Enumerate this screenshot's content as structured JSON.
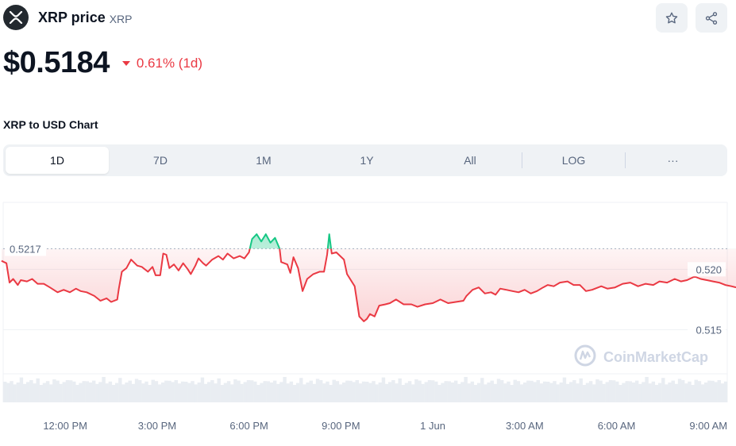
{
  "header": {
    "logo_icon": "xrp-logo-icon",
    "coin_name": "XRP price",
    "coin_symbol": "XRP",
    "watchlist_icon": "star-icon",
    "share_icon": "share-icon"
  },
  "price": {
    "value": "$0.5184",
    "change": "0.61% (1d)",
    "direction": "down",
    "change_color": "#ea3943"
  },
  "chart_section": {
    "title": "XRP to USD Chart",
    "tabs": [
      "1D",
      "7D",
      "1M",
      "1Y",
      "All",
      "LOG",
      "···"
    ],
    "active_tab": "1D"
  },
  "chart_data": {
    "type": "line",
    "reference_label": "0.5217",
    "reference_value": 0.5217,
    "y_ticks": [
      {
        "value": 0.52,
        "label": "0.520"
      },
      {
        "value": 0.515,
        "label": "0.515"
      }
    ],
    "x_ticks": [
      {
        "t": 2.0,
        "label": "12:00 PM"
      },
      {
        "t": 5.0,
        "label": "3:00 PM"
      },
      {
        "t": 8.0,
        "label": "6:00 PM"
      },
      {
        "t": 11.0,
        "label": "9:00 PM"
      },
      {
        "t": 14.0,
        "label": "1 Jun"
      },
      {
        "t": 17.0,
        "label": "3:00 AM"
      },
      {
        "t": 20.0,
        "label": "6:00 AM"
      },
      {
        "t": 23.0,
        "label": "9:00 AM"
      }
    ],
    "x_range": [
      -0.13,
      23.9
    ],
    "y_range": [
      0.5111,
      0.5254
    ],
    "up_color": "#16c784",
    "down_color": "#ea3943",
    "watermark": "CoinMarketCap",
    "series": [
      {
        "values": [
          [
            -0.08,
            0.5207
          ],
          [
            0.08,
            0.5205
          ],
          [
            0.18,
            0.5189
          ],
          [
            0.3,
            0.5192
          ],
          [
            0.45,
            0.5187
          ],
          [
            0.55,
            0.5191
          ],
          [
            0.75,
            0.519
          ],
          [
            0.92,
            0.5192
          ],
          [
            1.1,
            0.5188
          ],
          [
            1.3,
            0.5188
          ],
          [
            1.5,
            0.5185
          ],
          [
            1.75,
            0.5181
          ],
          [
            1.95,
            0.5183
          ],
          [
            2.15,
            0.5181
          ],
          [
            2.35,
            0.5184
          ],
          [
            2.5,
            0.5182
          ],
          [
            2.7,
            0.5181
          ],
          [
            2.95,
            0.5178
          ],
          [
            3.15,
            0.5174
          ],
          [
            3.35,
            0.5176
          ],
          [
            3.5,
            0.5173
          ],
          [
            3.7,
            0.5175
          ],
          [
            3.75,
            0.5184
          ],
          [
            3.85,
            0.5198
          ],
          [
            4.0,
            0.5201
          ],
          [
            4.15,
            0.5208
          ],
          [
            4.35,
            0.5203
          ],
          [
            4.5,
            0.5202
          ],
          [
            4.7,
            0.5198
          ],
          [
            4.85,
            0.5202
          ],
          [
            4.95,
            0.5195
          ],
          [
            5.1,
            0.5195
          ],
          [
            5.2,
            0.5213
          ],
          [
            5.3,
            0.5212
          ],
          [
            5.4,
            0.5201
          ],
          [
            5.55,
            0.5204
          ],
          [
            5.7,
            0.5199
          ],
          [
            5.85,
            0.5205
          ],
          [
            6.0,
            0.52
          ],
          [
            6.1,
            0.5196
          ],
          [
            6.25,
            0.5203
          ],
          [
            6.35,
            0.5209
          ],
          [
            6.5,
            0.5205
          ],
          [
            6.6,
            0.5203
          ],
          [
            6.8,
            0.5208
          ],
          [
            7.0,
            0.5211
          ],
          [
            7.15,
            0.5208
          ],
          [
            7.3,
            0.5213
          ],
          [
            7.5,
            0.5209
          ],
          [
            7.7,
            0.5211
          ],
          [
            7.85,
            0.5209
          ],
          [
            8.0,
            0.5214
          ],
          [
            8.1,
            0.5225
          ],
          [
            8.25,
            0.5229
          ],
          [
            8.4,
            0.5223
          ],
          [
            8.55,
            0.5229
          ],
          [
            8.7,
            0.5222
          ],
          [
            8.85,
            0.5226
          ],
          [
            9.0,
            0.5217
          ],
          [
            9.05,
            0.5206
          ],
          [
            9.25,
            0.5204
          ],
          [
            9.35,
            0.5197
          ],
          [
            9.45,
            0.521
          ],
          [
            9.6,
            0.5201
          ],
          [
            9.75,
            0.5182
          ],
          [
            9.9,
            0.5192
          ],
          [
            10.1,
            0.5196
          ],
          [
            10.3,
            0.5198
          ],
          [
            10.45,
            0.5198
          ],
          [
            10.55,
            0.5212
          ],
          [
            10.62,
            0.5229
          ],
          [
            10.7,
            0.5213
          ],
          [
            10.85,
            0.5214
          ],
          [
            11.1,
            0.5208
          ],
          [
            11.2,
            0.5196
          ],
          [
            11.45,
            0.5186
          ],
          [
            11.6,
            0.5161
          ],
          [
            11.75,
            0.5157
          ],
          [
            11.85,
            0.5159
          ],
          [
            11.95,
            0.5163
          ],
          [
            12.1,
            0.5161
          ],
          [
            12.25,
            0.517
          ],
          [
            12.45,
            0.5171
          ],
          [
            12.6,
            0.5172
          ],
          [
            12.8,
            0.5175
          ],
          [
            13.05,
            0.5171
          ],
          [
            13.3,
            0.5171
          ],
          [
            13.5,
            0.5169
          ],
          [
            13.75,
            0.5171
          ],
          [
            14.0,
            0.5172
          ],
          [
            14.25,
            0.5175
          ],
          [
            14.5,
            0.5172
          ],
          [
            14.75,
            0.5173
          ],
          [
            15.0,
            0.5174
          ],
          [
            15.1,
            0.5178
          ],
          [
            15.3,
            0.5183
          ],
          [
            15.5,
            0.5185
          ],
          [
            15.7,
            0.518
          ],
          [
            15.9,
            0.5181
          ],
          [
            16.05,
            0.5179
          ],
          [
            16.2,
            0.5184
          ],
          [
            16.4,
            0.5183
          ],
          [
            16.6,
            0.5182
          ],
          [
            16.8,
            0.5181
          ],
          [
            17.0,
            0.5183
          ],
          [
            17.2,
            0.518
          ],
          [
            17.4,
            0.5182
          ],
          [
            17.6,
            0.5185
          ],
          [
            17.75,
            0.5187
          ],
          [
            17.95,
            0.5186
          ],
          [
            18.15,
            0.5189
          ],
          [
            18.4,
            0.519
          ],
          [
            18.6,
            0.5187
          ],
          [
            18.8,
            0.5187
          ],
          [
            19.0,
            0.5182
          ],
          [
            19.2,
            0.5183
          ],
          [
            19.5,
            0.5186
          ],
          [
            19.7,
            0.5184
          ],
          [
            19.95,
            0.5185
          ],
          [
            20.2,
            0.5188
          ],
          [
            20.45,
            0.5189
          ],
          [
            20.7,
            0.5186
          ],
          [
            20.95,
            0.5188
          ],
          [
            21.2,
            0.5187
          ],
          [
            21.4,
            0.519
          ],
          [
            21.65,
            0.5189
          ],
          [
            21.9,
            0.5192
          ],
          [
            22.1,
            0.519
          ],
          [
            22.3,
            0.5191
          ],
          [
            22.55,
            0.5194
          ],
          [
            22.75,
            0.5192
          ],
          [
            22.95,
            0.5191
          ],
          [
            23.15,
            0.519
          ],
          [
            23.35,
            0.5189
          ],
          [
            23.55,
            0.5187
          ],
          [
            23.75,
            0.5186
          ],
          [
            23.9,
            0.5185
          ]
        ]
      }
    ],
    "volume_bars": 220
  }
}
